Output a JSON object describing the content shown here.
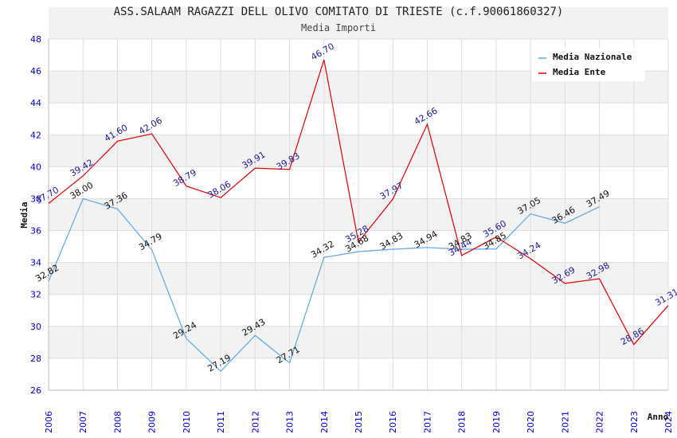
{
  "chart_data": {
    "type": "line",
    "title": "ASS.SALAAM RAGAZZI DELL OLIVO COMITATO DI TRIESTE (c.f.90061860327)",
    "subtitle": "Media Importi",
    "xlabel": "Anno",
    "ylabel": "Media",
    "ylim": [
      26,
      48
    ],
    "yticks": [
      "26",
      "28",
      "30",
      "32",
      "34",
      "36",
      "38",
      "40",
      "42",
      "44",
      "46",
      "48"
    ],
    "categories": [
      "2006",
      "2007",
      "2008",
      "2009",
      "2010",
      "2011",
      "2012",
      "2013",
      "2014",
      "2015",
      "2016",
      "2017",
      "2018",
      "2019",
      "2020",
      "2021",
      "2022",
      "2023",
      "2024"
    ],
    "legend_position": "top-right",
    "series": [
      {
        "name": "Media Nazionale",
        "color": "#5aa7e6",
        "label_color": "#111111",
        "values": [
          32.82,
          38.0,
          37.36,
          34.79,
          29.24,
          27.19,
          29.43,
          27.71,
          34.32,
          34.68,
          34.83,
          34.94,
          34.83,
          34.85,
          37.05,
          36.46,
          37.49,
          null,
          null
        ],
        "labels": [
          "32.82",
          "38.00",
          "37.36",
          "34.79",
          "29.24",
          "27.19",
          "29.43",
          "27.71",
          "34.32",
          "34.68",
          "34.83",
          "34.94",
          "34.83",
          "34.85",
          "37.05",
          "36.46",
          "37.49",
          "",
          ""
        ]
      },
      {
        "name": "Media Ente",
        "color": "#dd0000",
        "label_color": "#1a1a99",
        "values": [
          37.7,
          39.42,
          41.6,
          42.06,
          38.79,
          38.06,
          39.91,
          39.83,
          46.7,
          35.28,
          37.97,
          42.66,
          34.44,
          35.6,
          34.24,
          32.69,
          32.98,
          28.86,
          31.31
        ],
        "labels": [
          "37.70",
          "39.42",
          "41.60",
          "42.06",
          "38.79",
          "38.06",
          "39.91",
          "39.83",
          "46.70",
          "35.28",
          "37.97",
          "42.66",
          "34.44",
          "35.60",
          "34.24",
          "32.69",
          "32.98",
          "28.86",
          "31.31"
        ]
      }
    ]
  }
}
